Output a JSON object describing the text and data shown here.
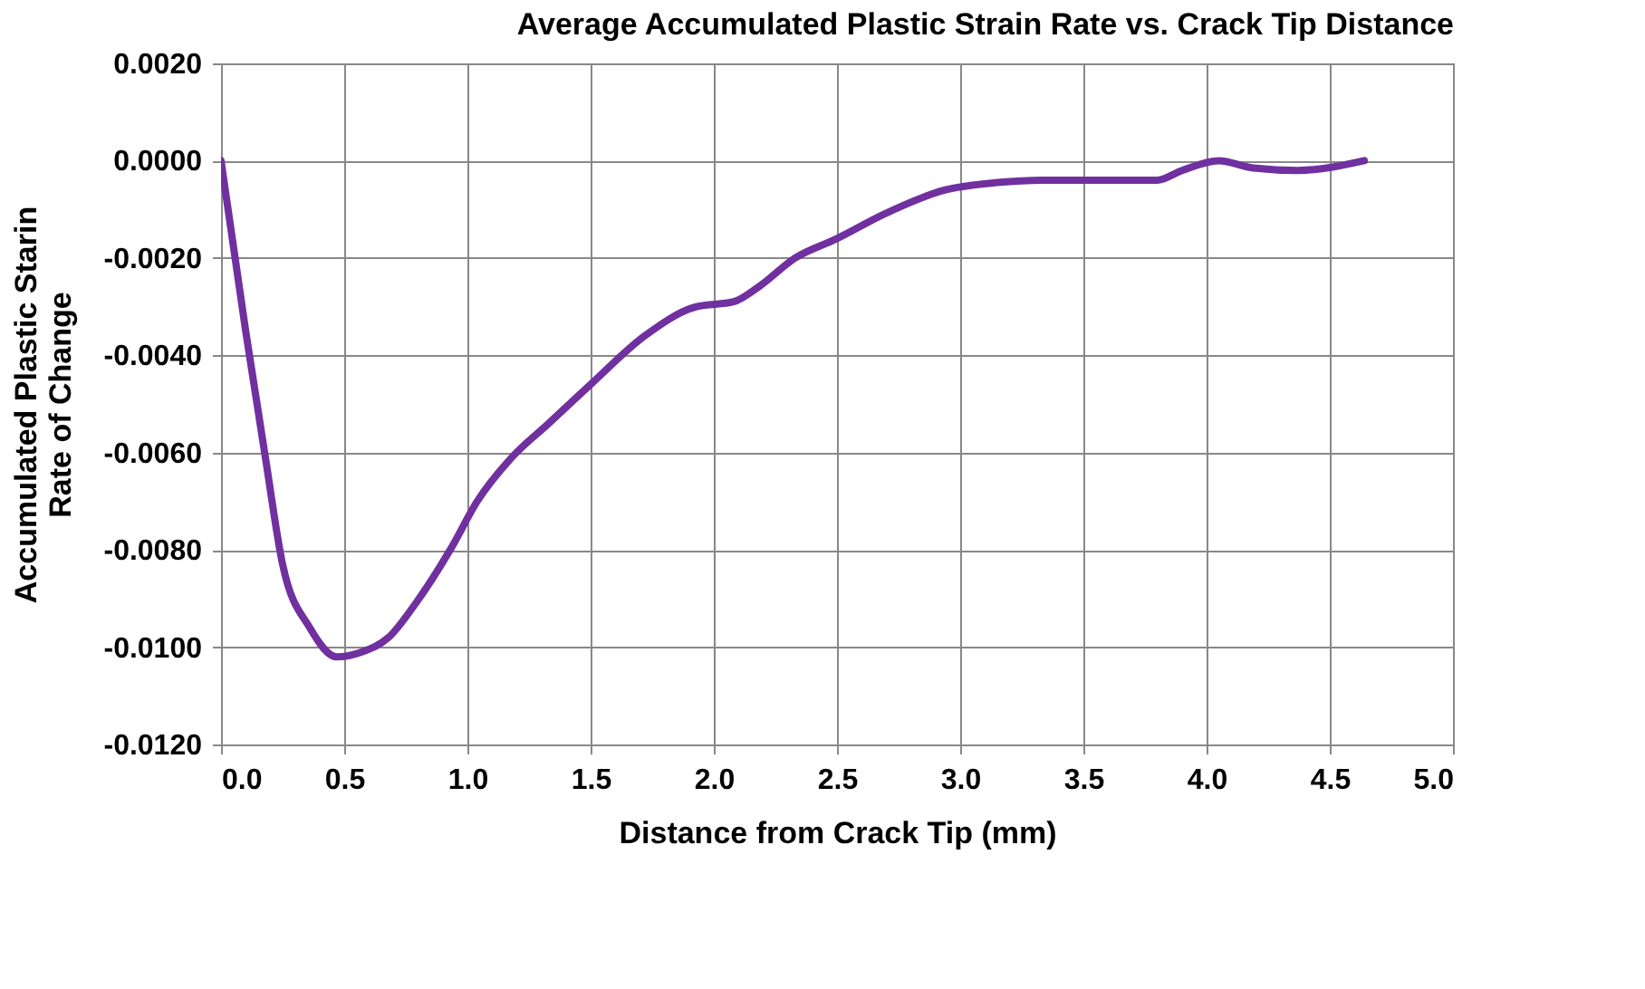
{
  "chart_data": {
    "type": "line",
    "title": "Average Accumulated Plastic Strain Rate vs. Crack Tip Distance",
    "xlabel": "Distance from Crack Tip (mm)",
    "ylabel": "Accumulated Plastic Starin Rate of Change",
    "series": [
      {
        "color": "#7030a0",
        "x": [
          0,
          0.1,
          0.18,
          0.25,
          0.36,
          0.47,
          0.57,
          0.68,
          0.79,
          0.93,
          1.04,
          1.18,
          1.33,
          1.5,
          1.72,
          1.93,
          2.08,
          2.18,
          2.33,
          2.5,
          2.69,
          2.94,
          3.15,
          3.33,
          3.65,
          3.8,
          3.9,
          4.05,
          4.19,
          4.37,
          4.64
        ],
        "values": [
          0,
          -0.0035,
          -0.0061,
          -0.0083,
          -0.0096,
          -0.0102,
          -0.0101,
          -0.0098,
          -0.0091,
          -0.008,
          -0.007,
          -0.0061,
          -0.0054,
          -0.0046,
          -0.0036,
          -0.003,
          -0.0029,
          -0.0026,
          -0.002,
          -0.0016,
          -0.0011,
          -0.0006,
          -0.00045,
          -0.0004,
          -0.0004,
          -0.0004,
          -0.0002,
          0,
          -0.00015,
          -0.0002,
          0
        ]
      }
    ],
    "xlim": [
      0,
      5
    ],
    "xticks": [
      {
        "value": 0,
        "label": "0.0"
      },
      0.5,
      {
        "value": 1,
        "label": "1.0"
      },
      1.5,
      {
        "value": 2,
        "label": "2.0"
      },
      2.5,
      {
        "value": 3,
        "label": "3.0"
      },
      3.5,
      {
        "value": 4,
        "label": "4.0"
      },
      4.5,
      {
        "value": 5,
        "label": "5.0"
      }
    ],
    "ylim": [
      -0.012,
      0.002
    ],
    "yticks": [
      {
        "value": -0.012,
        "label": "-0.0120"
      },
      {
        "value": -0.01,
        "label": "-0.0100"
      },
      {
        "value": -0.008,
        "label": "-0.0080"
      },
      {
        "value": -0.006,
        "label": "-0.0060"
      },
      {
        "value": -0.004,
        "label": "-0.0040"
      },
      {
        "value": -0.002,
        "label": "-0.0020"
      },
      {
        "value": 0,
        "label": "0.0000"
      },
      {
        "value": 0.002,
        "label": "0.0020"
      }
    ],
    "grid": true,
    "marker": "none",
    "line_style": "solid"
  }
}
